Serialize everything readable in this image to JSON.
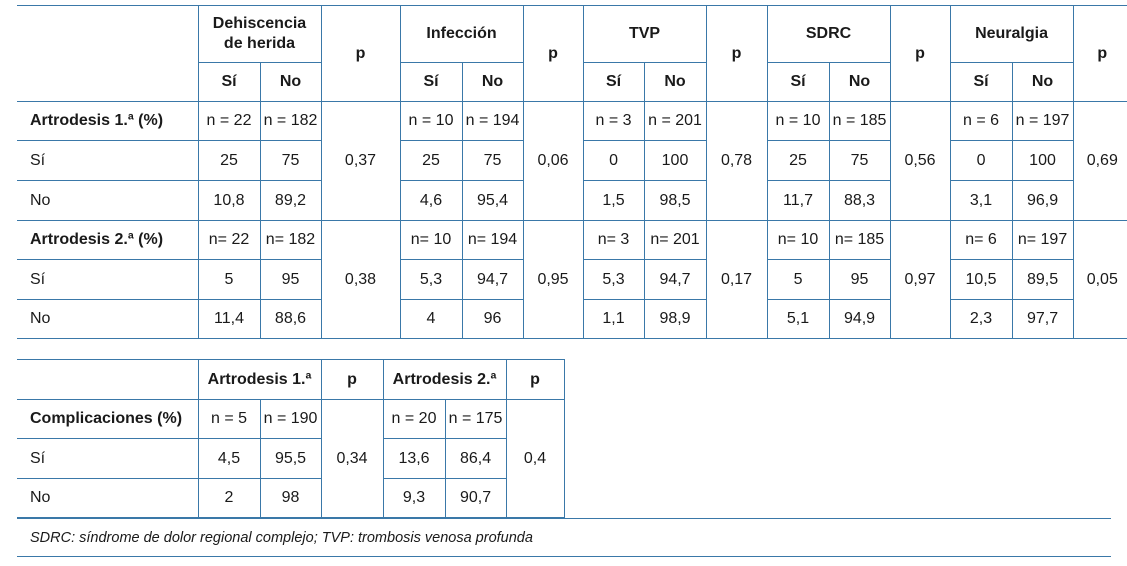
{
  "table1": {
    "groups": [
      "Dehiscencia de herida",
      "Infección",
      "TVP",
      "SDRC",
      "Neuralgia"
    ],
    "p_header": "p",
    "si": "Sí",
    "no": "No",
    "sections": [
      {
        "label": "Artrodesis 1.ª (%)",
        "n": [
          "n = 22",
          "n = 182",
          "n = 10",
          "n = 194",
          "n = 3",
          "n = 201",
          "n = 10",
          "n = 185",
          "n = 6",
          "n = 197"
        ],
        "si_row": [
          "25",
          "75",
          "25",
          "75",
          "0",
          "100",
          "25",
          "75",
          "0",
          "100"
        ],
        "no_row": [
          "10,8",
          "89,2",
          "4,6",
          "95,4",
          "1,5",
          "98,5",
          "11,7",
          "88,3",
          "3,1",
          "96,9"
        ],
        "p": [
          "0,37",
          "0,06",
          "0,78",
          "0,56",
          "0,69"
        ]
      },
      {
        "label": "Artrodesis 2.ª (%)",
        "n": [
          "n= 22",
          "n= 182",
          "n= 10",
          "n= 194",
          "n= 3",
          "n= 201",
          "n= 10",
          "n= 185",
          "n= 6",
          "n= 197"
        ],
        "si_row": [
          "5",
          "95",
          "5,3",
          "94,7",
          "5,3",
          "94,7",
          "5",
          "95",
          "10,5",
          "89,5"
        ],
        "no_row": [
          "11,4",
          "88,6",
          "4",
          "96",
          "1,1",
          "98,9",
          "5,1",
          "94,9",
          "2,3",
          "97,7"
        ],
        "p": [
          "0,38",
          "0,95",
          "0,17",
          "0,97",
          "0,05"
        ]
      }
    ]
  },
  "table2": {
    "groups": [
      "Artrodesis 1.ª",
      "Artrodesis 2.ª"
    ],
    "p_header": "p",
    "label": "Complicaciones (%)",
    "n": [
      "n = 5",
      "n = 190",
      "n = 20",
      "n = 175"
    ],
    "si_row": [
      "4,5",
      "95,5",
      "13,6",
      "86,4"
    ],
    "no_row": [
      "2",
      "98",
      "9,3",
      "90,7"
    ],
    "p": [
      "0,34",
      "0,4"
    ]
  },
  "footnote": "SDRC: síndrome de dolor regional complejo; TVP: trombosis venosa profunda"
}
